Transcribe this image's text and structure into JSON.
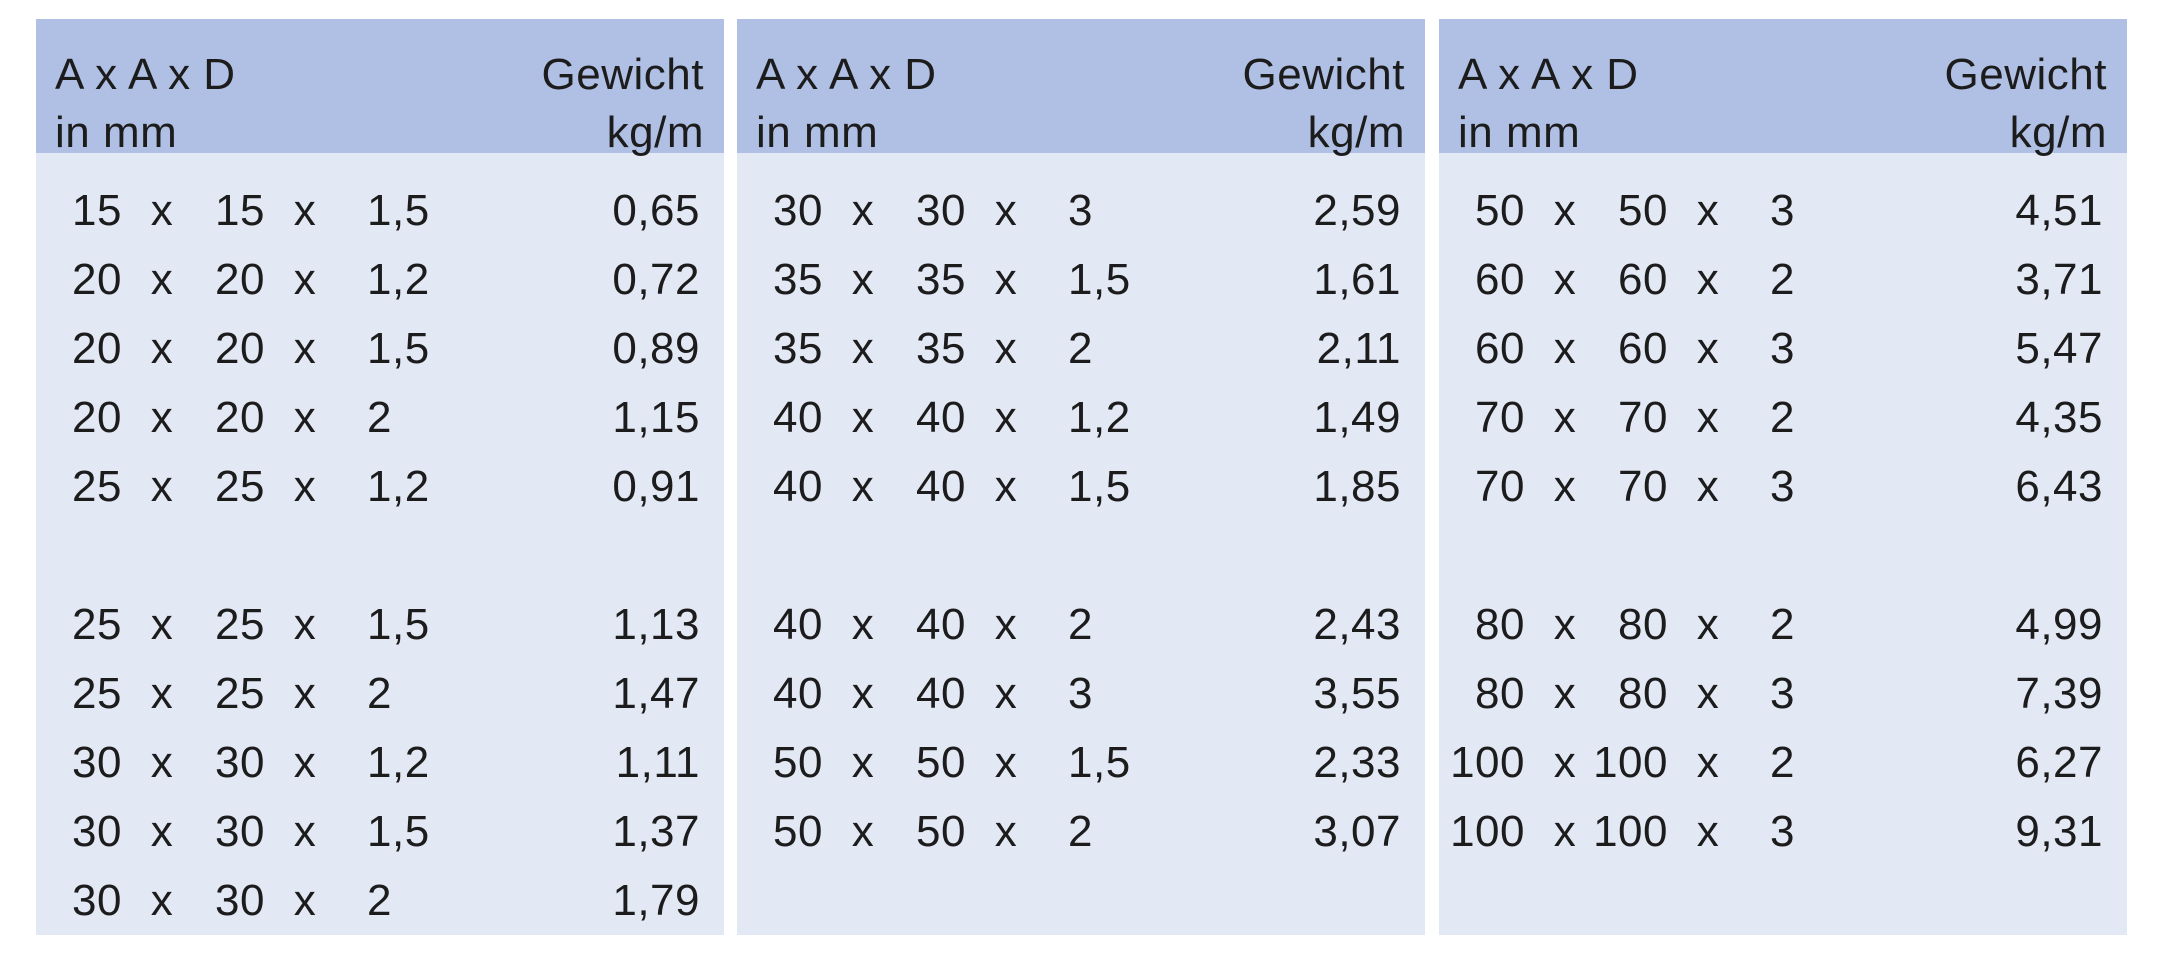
{
  "panels": [
    {
      "header": {
        "dims": [
          "A x A x D",
          "in mm"
        ],
        "weight": [
          "Gewicht",
          "kg/m"
        ]
      },
      "groups": [
        [
          [
            "15",
            "x",
            "15",
            "x",
            "1,5",
            "0,65"
          ],
          [
            "20",
            "x",
            "20",
            "x",
            "1,2",
            "0,72"
          ],
          [
            "20",
            "x",
            "20",
            "x",
            "1,5",
            "0,89"
          ],
          [
            "20",
            "x",
            "20",
            "x",
            "2",
            "1,15"
          ],
          [
            "25",
            "x",
            "25",
            "x",
            "1,2",
            "0,91"
          ]
        ],
        [
          [
            "25",
            "x",
            "25",
            "x",
            "1,5",
            "1,13"
          ],
          [
            "25",
            "x",
            "25",
            "x",
            "2",
            "1,47"
          ],
          [
            "30",
            "x",
            "30",
            "x",
            "1,2",
            "1,11"
          ],
          [
            "30",
            "x",
            "30",
            "x",
            "1,5",
            "1,37"
          ],
          [
            "30",
            "x",
            "30",
            "x",
            "2",
            "1,79"
          ]
        ]
      ]
    },
    {
      "header": {
        "dims": [
          "A x A x D",
          "in mm"
        ],
        "weight": [
          "Gewicht",
          "kg/m"
        ]
      },
      "groups": [
        [
          [
            "30",
            "x",
            "30",
            "x",
            "3",
            "2,59"
          ],
          [
            "35",
            "x",
            "35",
            "x",
            "1,5",
            "1,61"
          ],
          [
            "35",
            "x",
            "35",
            "x",
            "2",
            "2,11"
          ],
          [
            "40",
            "x",
            "40",
            "x",
            "1,2",
            "1,49"
          ],
          [
            "40",
            "x",
            "40",
            "x",
            "1,5",
            "1,85"
          ]
        ],
        [
          [
            "40",
            "x",
            "40",
            "x",
            "2",
            "2,43"
          ],
          [
            "40",
            "x",
            "40",
            "x",
            "3",
            "3,55"
          ],
          [
            "50",
            "x",
            "50",
            "x",
            "1,5",
            "2,33"
          ],
          [
            "50",
            "x",
            "50",
            "x",
            "2",
            "3,07"
          ]
        ]
      ]
    },
    {
      "header": {
        "dims": [
          "A x A x D",
          "in mm"
        ],
        "weight": [
          "Gewicht",
          "kg/m"
        ]
      },
      "groups": [
        [
          [
            "50",
            "x",
            "50",
            "x",
            "3",
            "4,51"
          ],
          [
            "60",
            "x",
            "60",
            "x",
            "2",
            "3,71"
          ],
          [
            "60",
            "x",
            "60",
            "x",
            "3",
            "5,47"
          ],
          [
            "70",
            "x",
            "70",
            "x",
            "2",
            "4,35"
          ],
          [
            "70",
            "x",
            "70",
            "x",
            "3",
            "6,43"
          ]
        ],
        [
          [
            "80",
            "x",
            "80",
            "x",
            "2",
            "4,99"
          ],
          [
            "80",
            "x",
            "80",
            "x",
            "3",
            "7,39"
          ],
          [
            "100",
            "x",
            "100",
            "x",
            "2",
            "6,27"
          ],
          [
            "100",
            "x",
            "100",
            "x",
            "3",
            "9,31"
          ]
        ]
      ]
    }
  ]
}
